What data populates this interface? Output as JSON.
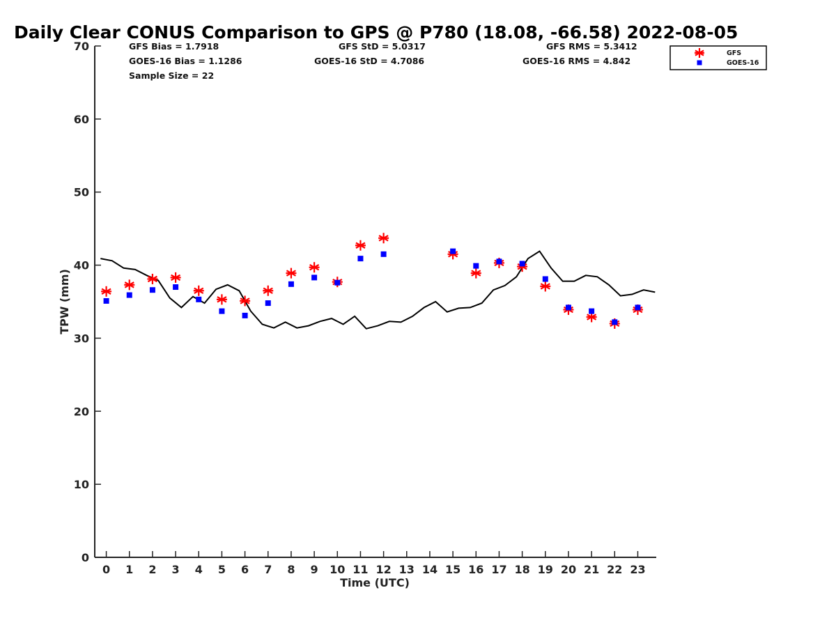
{
  "chart_data": {
    "type": "scatter",
    "title": "Daily Clear CONUS Comparison to GPS @ P780 (18.08, -66.58) 2022-08-05",
    "xlabel": "Time (UTC)",
    "ylabel": "TPW (mm)",
    "xlim": [
      -0.5,
      23.8
    ],
    "ylim": [
      0,
      70
    ],
    "xticks": [
      0,
      1,
      2,
      3,
      4,
      5,
      6,
      7,
      8,
      9,
      10,
      11,
      12,
      13,
      14,
      15,
      16,
      17,
      18,
      19,
      20,
      21,
      22,
      23
    ],
    "yticks": [
      0,
      10,
      20,
      30,
      40,
      50,
      60,
      70
    ],
    "grid": false,
    "legend_position": "top-right",
    "stats": {
      "gfs_bias": "GFS Bias = 1.7918",
      "goes_bias": "GOES-16 Bias = 1.1286",
      "sample_size": "Sample Size = 22",
      "gfs_std": "GFS StD = 5.0317",
      "goes_std": "GOES-16 StD = 4.7086",
      "gfs_rms": "GFS RMS = 5.3412",
      "goes_rms": "GOES-16 RMS = 4.842"
    },
    "series": [
      {
        "name": "GFS",
        "marker": "asterisk",
        "color": "#ff0000",
        "points": [
          [
            0,
            36.4
          ],
          [
            1,
            37.3
          ],
          [
            2,
            38.1
          ],
          [
            3,
            38.3
          ],
          [
            4,
            36.5
          ],
          [
            5,
            35.3
          ],
          [
            6,
            35.1
          ],
          [
            7,
            36.5
          ],
          [
            8,
            38.9
          ],
          [
            9,
            39.7
          ],
          [
            10,
            37.7
          ],
          [
            11,
            42.7
          ],
          [
            12,
            43.7
          ],
          [
            15,
            41.5
          ],
          [
            16,
            38.9
          ],
          [
            17,
            40.3
          ],
          [
            18,
            39.8
          ],
          [
            19,
            37.1
          ],
          [
            20,
            33.9
          ],
          [
            21,
            32.9
          ],
          [
            22,
            32.0
          ],
          [
            23,
            33.9
          ]
        ]
      },
      {
        "name": "GOES-16",
        "marker": "square",
        "color": "#0000ff",
        "points": [
          [
            0,
            35.1
          ],
          [
            1,
            35.9
          ],
          [
            2,
            36.6
          ],
          [
            3,
            37.0
          ],
          [
            4,
            35.3
          ],
          [
            5,
            33.7
          ],
          [
            6,
            33.1
          ],
          [
            7,
            34.8
          ],
          [
            8,
            37.4
          ],
          [
            9,
            38.3
          ],
          [
            10,
            37.6
          ],
          [
            11,
            40.9
          ],
          [
            12,
            41.5
          ],
          [
            15,
            41.9
          ],
          [
            16,
            39.9
          ],
          [
            17,
            40.5
          ],
          [
            18,
            40.2
          ],
          [
            19,
            38.1
          ],
          [
            20,
            34.2
          ],
          [
            21,
            33.7
          ],
          [
            22,
            32.2
          ],
          [
            23,
            34.2
          ]
        ]
      },
      {
        "name": "",
        "marker": "line",
        "color": "#000000",
        "points": [
          [
            -0.25,
            40.9
          ],
          [
            0.25,
            40.6
          ],
          [
            0.75,
            39.6
          ],
          [
            1.25,
            39.4
          ],
          [
            1.75,
            38.6
          ],
          [
            2.25,
            37.9
          ],
          [
            2.75,
            35.5
          ],
          [
            3.25,
            34.2
          ],
          [
            3.75,
            35.7
          ],
          [
            4.25,
            34.8
          ],
          [
            4.75,
            36.7
          ],
          [
            5.25,
            37.3
          ],
          [
            5.75,
            36.5
          ],
          [
            6.25,
            33.7
          ],
          [
            6.75,
            31.9
          ],
          [
            7.25,
            31.4
          ],
          [
            7.75,
            32.2
          ],
          [
            8.25,
            31.4
          ],
          [
            8.75,
            31.7
          ],
          [
            9.25,
            32.3
          ],
          [
            9.75,
            32.7
          ],
          [
            10.25,
            31.9
          ],
          [
            10.75,
            33.0
          ],
          [
            11.25,
            31.3
          ],
          [
            11.75,
            31.7
          ],
          [
            12.25,
            32.3
          ],
          [
            12.75,
            32.2
          ],
          [
            13.25,
            33.0
          ],
          [
            13.75,
            34.2
          ],
          [
            14.25,
            35.0
          ],
          [
            14.75,
            33.6
          ],
          [
            15.25,
            34.1
          ],
          [
            15.75,
            34.2
          ],
          [
            16.25,
            34.8
          ],
          [
            16.75,
            36.6
          ],
          [
            17.25,
            37.2
          ],
          [
            17.75,
            38.4
          ],
          [
            18.25,
            40.9
          ],
          [
            18.75,
            41.9
          ],
          [
            19.25,
            39.6
          ],
          [
            19.75,
            37.8
          ],
          [
            20.25,
            37.8
          ],
          [
            20.75,
            38.6
          ],
          [
            21.25,
            38.4
          ],
          [
            21.75,
            37.3
          ],
          [
            22.25,
            35.8
          ],
          [
            22.75,
            36.0
          ],
          [
            23.25,
            36.6
          ],
          [
            23.75,
            36.3
          ]
        ]
      }
    ]
  }
}
